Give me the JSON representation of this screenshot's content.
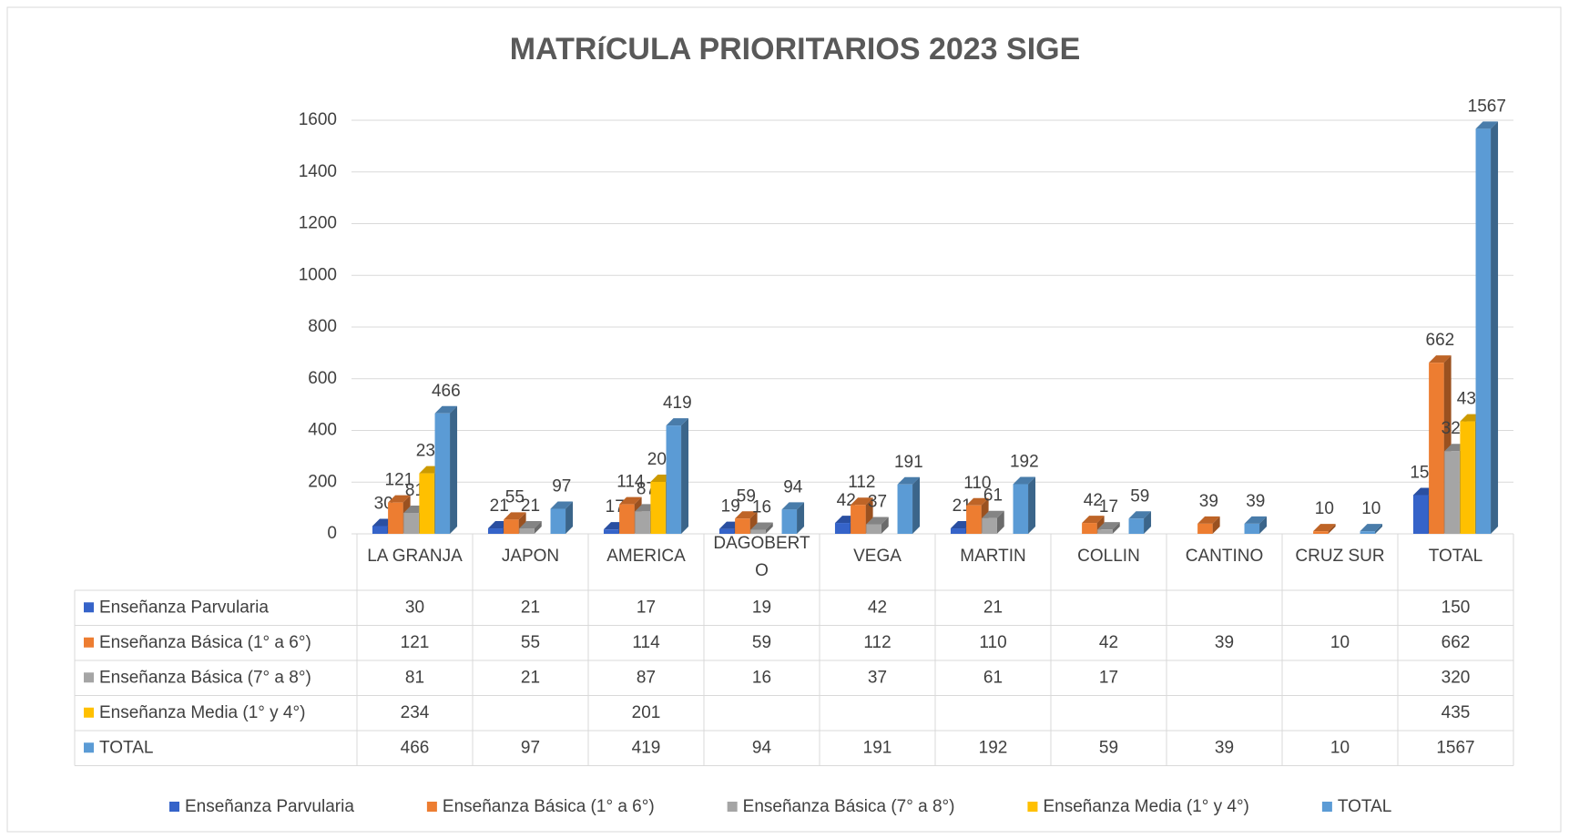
{
  "chart_data": {
    "type": "bar",
    "title": "MATRíCULA PRIORITARIOS 2023 SIGE",
    "categories": [
      "LA GRANJA",
      "JAPON",
      "AMERICA",
      "DAGOBERTO",
      "VEGA",
      "MARTIN",
      "COLLIN",
      "CANTINO",
      "CRUZ SUR",
      "TOTAL"
    ],
    "series": [
      {
        "name": "Enseñanza Parvularia",
        "color": "#3563c9",
        "values": [
          30,
          21,
          17,
          19,
          42,
          21,
          null,
          null,
          null,
          150
        ]
      },
      {
        "name": "Enseñanza Básica (1° a 6°)",
        "color": "#ed7d31",
        "values": [
          121,
          55,
          114,
          59,
          112,
          110,
          42,
          39,
          10,
          662
        ]
      },
      {
        "name": "Enseñanza Básica (7° a 8°)",
        "color": "#a5a5a5",
        "values": [
          81,
          21,
          87,
          16,
          37,
          61,
          17,
          null,
          null,
          320
        ]
      },
      {
        "name": "Enseñanza Media (1° y 4°)",
        "color": "#ffc000",
        "values": [
          234,
          null,
          201,
          null,
          null,
          null,
          null,
          null,
          null,
          435
        ]
      },
      {
        "name": "TOTAL",
        "color": "#5b9bd5",
        "values": [
          466,
          97,
          419,
          94,
          191,
          192,
          59,
          39,
          10,
          1567
        ]
      }
    ],
    "ylim": [
      0,
      1600
    ],
    "yticks": [
      0,
      200,
      400,
      600,
      800,
      1000,
      1200,
      1400,
      1600
    ],
    "grid": true,
    "data_table": true,
    "legend": "bottom"
  }
}
